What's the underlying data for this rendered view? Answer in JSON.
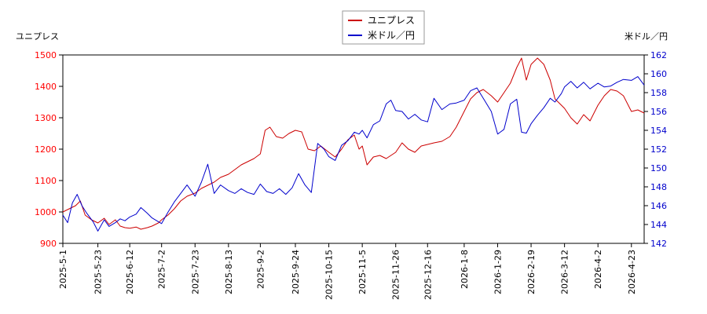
{
  "chart_data": {
    "type": "line",
    "y_left_label": "ユニプレス",
    "y_right_label": "米ドル／円",
    "y_left_range": [
      900,
      1500
    ],
    "y_left_ticks": [
      "900",
      "1000",
      "1100",
      "1200",
      "1300",
      "1400",
      "1500"
    ],
    "y_left_color": "#ff0000",
    "y_right_range": [
      142,
      162
    ],
    "y_right_ticks": [
      "142",
      "144",
      "146",
      "148",
      "150",
      "152",
      "154",
      "156",
      "158",
      "160",
      "162"
    ],
    "y_right_color": "#0000cc",
    "x_ticks": [
      "2025-5-1",
      "2025-5-23",
      "2025-6-12",
      "2025-7-2",
      "2025-7-23",
      "2025-8-13",
      "2025-9-2",
      "2025-9-24",
      "2025-10-15",
      "2025-11-5",
      "2025-11-26",
      "2025-12-16",
      "2026-1-8",
      "2026-1-29",
      "2026-2-19",
      "2026-3-12",
      "2026-4-2",
      "2026-4-23"
    ],
    "grid": false,
    "legend_position": "top-center",
    "series": [
      {
        "name": "ユニプレス",
        "axis": "left",
        "color": "#cc0000",
        "points": [
          [
            "2025-5-1",
            1000
          ],
          [
            "2025-5-5",
            1010
          ],
          [
            "2025-5-9",
            1020
          ],
          [
            "2025-5-12",
            1035
          ],
          [
            "2025-5-15",
            990
          ],
          [
            "2025-5-19",
            975
          ],
          [
            "2025-5-23",
            965
          ],
          [
            "2025-5-27",
            980
          ],
          [
            "2025-5-30",
            960
          ],
          [
            "2025-6-3",
            975
          ],
          [
            "2025-6-6",
            955
          ],
          [
            "2025-6-9",
            950
          ],
          [
            "2025-6-12",
            948
          ],
          [
            "2025-6-16",
            952
          ],
          [
            "2025-6-19",
            945
          ],
          [
            "2025-6-23",
            950
          ],
          [
            "2025-6-26",
            955
          ],
          [
            "2025-6-30",
            965
          ],
          [
            "2025-7-2",
            975
          ],
          [
            "2025-7-6",
            990
          ],
          [
            "2025-7-10",
            1010
          ],
          [
            "2025-7-14",
            1035
          ],
          [
            "2025-7-18",
            1050
          ],
          [
            "2025-7-23",
            1060
          ],
          [
            "2025-7-27",
            1075
          ],
          [
            "2025-7-31",
            1085
          ],
          [
            "2025-8-4",
            1095
          ],
          [
            "2025-8-8",
            1110
          ],
          [
            "2025-8-13",
            1120
          ],
          [
            "2025-8-17",
            1135
          ],
          [
            "2025-8-21",
            1150
          ],
          [
            "2025-8-25",
            1160
          ],
          [
            "2025-8-29",
            1170
          ],
          [
            "2025-9-2",
            1185
          ],
          [
            "2025-9-5",
            1260
          ],
          [
            "2025-9-8",
            1270
          ],
          [
            "2025-9-12",
            1240
          ],
          [
            "2025-9-16",
            1235
          ],
          [
            "2025-9-20",
            1250
          ],
          [
            "2025-9-24",
            1260
          ],
          [
            "2025-9-28",
            1255
          ],
          [
            "2025-10-2",
            1200
          ],
          [
            "2025-10-6",
            1195
          ],
          [
            "2025-10-10",
            1210
          ],
          [
            "2025-10-15",
            1190
          ],
          [
            "2025-10-19",
            1175
          ],
          [
            "2025-10-23",
            1200
          ],
          [
            "2025-10-27",
            1230
          ],
          [
            "2025-10-31",
            1245
          ],
          [
            "2025-11-3",
            1200
          ],
          [
            "2025-11-5",
            1210
          ],
          [
            "2025-11-8",
            1150
          ],
          [
            "2025-11-12",
            1175
          ],
          [
            "2025-11-16",
            1180
          ],
          [
            "2025-11-20",
            1170
          ],
          [
            "2025-11-26",
            1190
          ],
          [
            "2025-11-30",
            1220
          ],
          [
            "2025-12-4",
            1200
          ],
          [
            "2025-12-8",
            1190
          ],
          [
            "2025-12-12",
            1210
          ],
          [
            "2025-12-16",
            1215
          ],
          [
            "2025-12-20",
            1220
          ],
          [
            "2025-12-25",
            1225
          ],
          [
            "2025-12-30",
            1240
          ],
          [
            "2026-1-3",
            1270
          ],
          [
            "2026-1-8",
            1320
          ],
          [
            "2026-1-12",
            1360
          ],
          [
            "2026-1-16",
            1380
          ],
          [
            "2026-1-20",
            1390
          ],
          [
            "2026-1-25",
            1370
          ],
          [
            "2026-1-29",
            1350
          ],
          [
            "2026-2-2",
            1380
          ],
          [
            "2026-2-6",
            1410
          ],
          [
            "2026-2-10",
            1460
          ],
          [
            "2026-2-13",
            1490
          ],
          [
            "2026-2-16",
            1420
          ],
          [
            "2026-2-19",
            1470
          ],
          [
            "2026-2-23",
            1490
          ],
          [
            "2026-2-27",
            1470
          ],
          [
            "2026-3-3",
            1420
          ],
          [
            "2026-3-6",
            1360
          ],
          [
            "2026-3-10",
            1340
          ],
          [
            "2026-3-12",
            1330
          ],
          [
            "2026-3-16",
            1300
          ],
          [
            "2026-3-20",
            1280
          ],
          [
            "2026-3-24",
            1310
          ],
          [
            "2026-3-28",
            1290
          ],
          [
            "2026-4-2",
            1340
          ],
          [
            "2026-4-6",
            1370
          ],
          [
            "2026-4-10",
            1390
          ],
          [
            "2026-4-14",
            1385
          ],
          [
            "2026-4-18",
            1370
          ],
          [
            "2026-4-23",
            1320
          ],
          [
            "2026-4-27",
            1325
          ],
          [
            "2026-5-1",
            1315
          ]
        ]
      },
      {
        "name": "米ドル／円",
        "axis": "right",
        "color": "#0000cc",
        "points": [
          [
            "2025-5-1",
            145.0
          ],
          [
            "2025-5-4",
            144.2
          ],
          [
            "2025-5-7",
            146.3
          ],
          [
            "2025-5-10",
            147.2
          ],
          [
            "2025-5-13",
            146.0
          ],
          [
            "2025-5-16",
            145.2
          ],
          [
            "2025-5-20",
            144.3
          ],
          [
            "2025-5-23",
            143.3
          ],
          [
            "2025-5-27",
            144.5
          ],
          [
            "2025-5-30",
            143.8
          ],
          [
            "2025-6-3",
            144.2
          ],
          [
            "2025-6-6",
            144.6
          ],
          [
            "2025-6-9",
            144.4
          ],
          [
            "2025-6-12",
            144.8
          ],
          [
            "2025-6-16",
            145.1
          ],
          [
            "2025-6-19",
            145.8
          ],
          [
            "2025-6-23",
            145.2
          ],
          [
            "2025-6-26",
            144.7
          ],
          [
            "2025-6-30",
            144.3
          ],
          [
            "2025-7-2",
            144.1
          ],
          [
            "2025-7-6",
            145.3
          ],
          [
            "2025-7-10",
            146.4
          ],
          [
            "2025-7-14",
            147.3
          ],
          [
            "2025-7-18",
            148.2
          ],
          [
            "2025-7-23",
            147.0
          ],
          [
            "2025-7-27",
            148.5
          ],
          [
            "2025-7-31",
            150.4
          ],
          [
            "2025-8-4",
            147.3
          ],
          [
            "2025-8-8",
            148.2
          ],
          [
            "2025-8-13",
            147.6
          ],
          [
            "2025-8-17",
            147.3
          ],
          [
            "2025-8-21",
            147.8
          ],
          [
            "2025-8-25",
            147.4
          ],
          [
            "2025-8-29",
            147.2
          ],
          [
            "2025-9-2",
            148.3
          ],
          [
            "2025-9-6",
            147.5
          ],
          [
            "2025-9-10",
            147.3
          ],
          [
            "2025-9-14",
            147.8
          ],
          [
            "2025-9-18",
            147.2
          ],
          [
            "2025-9-22",
            147.9
          ],
          [
            "2025-9-26",
            149.4
          ],
          [
            "2025-9-30",
            148.2
          ],
          [
            "2025-10-4",
            147.4
          ],
          [
            "2025-10-8",
            152.6
          ],
          [
            "2025-10-12",
            152.0
          ],
          [
            "2025-10-15",
            151.2
          ],
          [
            "2025-10-19",
            150.8
          ],
          [
            "2025-10-23",
            152.4
          ],
          [
            "2025-10-27",
            152.9
          ],
          [
            "2025-10-31",
            153.8
          ],
          [
            "2025-11-3",
            153.6
          ],
          [
            "2025-11-5",
            154.0
          ],
          [
            "2025-11-8",
            153.2
          ],
          [
            "2025-11-12",
            154.6
          ],
          [
            "2025-11-16",
            155.0
          ],
          [
            "2025-11-20",
            156.8
          ],
          [
            "2025-11-23",
            157.2
          ],
          [
            "2025-11-26",
            156.1
          ],
          [
            "2025-11-30",
            156.0
          ],
          [
            "2025-12-4",
            155.2
          ],
          [
            "2025-12-8",
            155.7
          ],
          [
            "2025-12-12",
            155.1
          ],
          [
            "2025-12-16",
            154.9
          ],
          [
            "2025-12-20",
            157.4
          ],
          [
            "2025-12-25",
            156.2
          ],
          [
            "2025-12-30",
            156.8
          ],
          [
            "2026-1-3",
            156.9
          ],
          [
            "2026-1-8",
            157.2
          ],
          [
            "2026-1-12",
            158.2
          ],
          [
            "2026-1-16",
            158.5
          ],
          [
            "2026-1-20",
            157.4
          ],
          [
            "2026-1-25",
            156.0
          ],
          [
            "2026-1-29",
            153.6
          ],
          [
            "2026-2-2",
            154.1
          ],
          [
            "2026-2-6",
            156.8
          ],
          [
            "2026-2-10",
            157.3
          ],
          [
            "2026-2-13",
            153.8
          ],
          [
            "2026-2-16",
            153.7
          ],
          [
            "2026-2-19",
            154.7
          ],
          [
            "2026-2-23",
            155.6
          ],
          [
            "2026-2-27",
            156.4
          ],
          [
            "2026-3-3",
            157.4
          ],
          [
            "2026-3-6",
            157.0
          ],
          [
            "2026-3-10",
            157.9
          ],
          [
            "2026-3-12",
            158.6
          ],
          [
            "2026-3-16",
            159.2
          ],
          [
            "2026-3-20",
            158.5
          ],
          [
            "2026-3-24",
            159.1
          ],
          [
            "2026-3-28",
            158.4
          ],
          [
            "2026-4-2",
            159.0
          ],
          [
            "2026-4-6",
            158.6
          ],
          [
            "2026-4-10",
            158.7
          ],
          [
            "2026-4-14",
            159.1
          ],
          [
            "2026-4-18",
            159.4
          ],
          [
            "2026-4-23",
            159.3
          ],
          [
            "2026-4-27",
            159.7
          ],
          [
            "2026-5-1",
            158.8
          ]
        ]
      }
    ]
  }
}
